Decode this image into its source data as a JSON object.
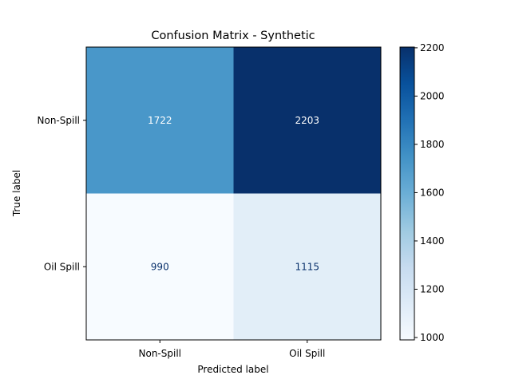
{
  "chart_data": {
    "type": "heatmap",
    "title": "Confusion Matrix - Synthetic",
    "xlabel": "Predicted label",
    "ylabel": "True label",
    "x_categories": [
      "Non-Spill",
      "Oil Spill"
    ],
    "y_categories": [
      "Non-Spill",
      "Oil Spill"
    ],
    "values": [
      [
        1722,
        2203
      ],
      [
        990,
        1115
      ]
    ],
    "colormap": "Blues",
    "colorbar": {
      "range": [
        990,
        2203
      ],
      "ticks": [
        "1000",
        "1200",
        "1400",
        "1600",
        "1800",
        "2000",
        "2200"
      ]
    },
    "text_colors": {
      "dark_cell": "#ffffff",
      "light_cell": "#08306b"
    }
  }
}
